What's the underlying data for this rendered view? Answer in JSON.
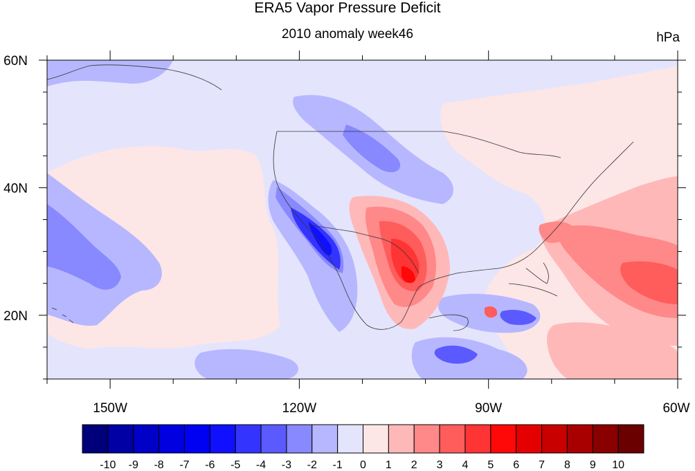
{
  "title": "ERA5 Vapor Pressure Deficit",
  "subtitle": "2010 anomaly week46",
  "units": "hPa",
  "map": {
    "lon_range": [
      -160,
      -60
    ],
    "lat_range": [
      10,
      60
    ],
    "lat_ticks": [
      "60N",
      "40N",
      "20N"
    ],
    "lon_ticks": [
      "150W",
      "120W",
      "90W",
      "60W"
    ],
    "lat_tick_values": [
      60,
      40,
      20
    ],
    "lon_tick_values": [
      -150,
      -120,
      -90,
      -60
    ]
  },
  "colorbar": {
    "labels": [
      "-10",
      "-9",
      "-8",
      "-7",
      "-6",
      "-5",
      "-4",
      "-3",
      "-2",
      "-1",
      "0",
      "1",
      "2",
      "3",
      "4",
      "5",
      "6",
      "7",
      "8",
      "9",
      "10"
    ],
    "colors": [
      "#00007a",
      "#0000a5",
      "#0000c6",
      "#0000e0",
      "#0000f2",
      "#1010ff",
      "#3434ff",
      "#5a5aff",
      "#8888ff",
      "#b7b7ff",
      "#e4e4fd",
      "#fde6e6",
      "#ffb8b8",
      "#ff8888",
      "#ff5c5c",
      "#ff3434",
      "#ff0808",
      "#e40000",
      "#c80000",
      "#a80000",
      "#8a0000",
      "#6a0000"
    ]
  }
}
